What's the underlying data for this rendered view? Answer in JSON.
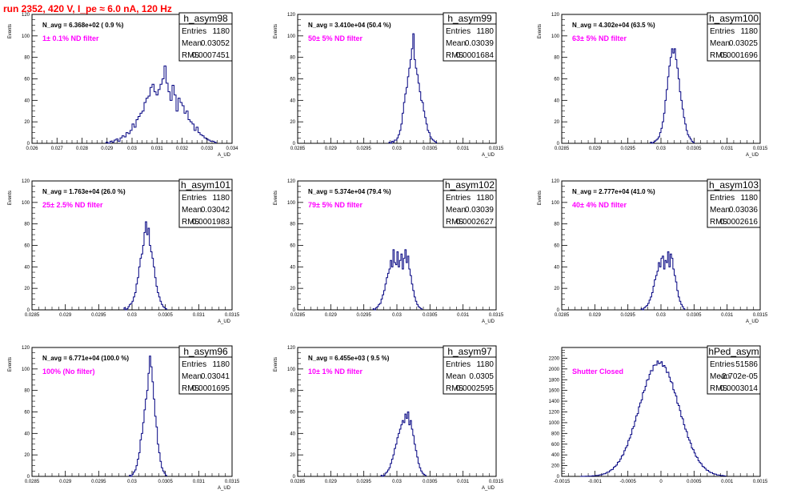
{
  "page": {
    "title": "run 2352,   420 V, I_pe ≈ 6.0 nA, 120 Hz"
  },
  "colors": {
    "histogram": "#000080",
    "annotation": "#ff00ff",
    "title": "#ff0000",
    "frame": "#000000"
  },
  "chart_data": [
    {
      "type": "histogram",
      "name": "h_asym98",
      "ylabel": "Events",
      "xlabel": "A_UD",
      "xlim": [
        0.026,
        0.034
      ],
      "ylim": [
        0,
        120
      ],
      "xticks": [
        0.026,
        0.027,
        0.028,
        0.029,
        0.03,
        0.031,
        0.032,
        0.033,
        0.034
      ],
      "xtick_labels": [
        "0.026",
        "0.027",
        "0.028",
        "0.029",
        "0.03",
        "0.031",
        "0.032",
        "0.033",
        "0.034"
      ],
      "yticks": [
        0,
        20,
        40,
        60,
        80,
        100,
        120
      ],
      "n_avg": "N_avg = 6.368e+02 ( 0.9 %)",
      "filter": "1± 0.1% ND filter",
      "stats": {
        "entries": "1180",
        "mean": "0.03052",
        "rms": "0.0007451"
      },
      "bins": {
        "start": 0.02896,
        "width": 8e-05,
        "values": [
          1,
          0,
          2,
          1,
          3,
          4,
          2,
          5,
          7,
          6,
          10,
          9,
          12,
          18,
          15,
          22,
          25,
          28,
          30,
          38,
          42,
          44,
          52,
          55,
          48,
          45,
          50,
          55,
          60,
          72,
          56,
          48,
          40,
          54,
          45,
          30,
          42,
          38,
          35,
          28,
          30,
          22,
          20,
          18,
          12,
          15,
          10,
          8,
          7,
          5,
          4,
          3,
          2,
          2,
          1
        ]
      }
    },
    {
      "type": "histogram",
      "name": "h_asym99",
      "ylabel": "Events",
      "xlabel": "A_UD",
      "xlim": [
        0.0285,
        0.0315
      ],
      "ylim": [
        0,
        120
      ],
      "xticks": [
        0.0285,
        0.029,
        0.0295,
        0.03,
        0.0305,
        0.031,
        0.0315
      ],
      "xtick_labels": [
        "0.0285",
        "0.029",
        "0.0295",
        "0.03",
        "0.0305",
        "0.031",
        "0.0315"
      ],
      "yticks": [
        0,
        20,
        40,
        60,
        80,
        100,
        120
      ],
      "n_avg": "N_avg = 3.410e+04 (50.4 %)",
      "filter": "50± 5% ND filter",
      "stats": {
        "entries": "1180",
        "mean": "0.03039",
        "rms": "0.0001684"
      },
      "bins": {
        "start": 0.02988,
        "width": 2e-05,
        "values": [
          1,
          0,
          2,
          1,
          3,
          3,
          5,
          8,
          12,
          18,
          28,
          38,
          46,
          52,
          62,
          70,
          78,
          88,
          102,
          78,
          70,
          64,
          56,
          48,
          40,
          38,
          30,
          24,
          18,
          12,
          10,
          6,
          4,
          3,
          2,
          1
        ]
      }
    },
    {
      "type": "histogram",
      "name": "h_asym100",
      "ylabel": "Events",
      "xlabel": "A_UD",
      "xlim": [
        0.0285,
        0.0315
      ],
      "ylim": [
        0,
        120
      ],
      "xticks": [
        0.0285,
        0.029,
        0.0295,
        0.03,
        0.0305,
        0.031,
        0.0315
      ],
      "xtick_labels": [
        "0.0285",
        "0.029",
        "0.0295",
        "0.03",
        "0.0305",
        "0.031",
        "0.0315"
      ],
      "yticks": [
        0,
        20,
        40,
        60,
        80,
        100,
        120
      ],
      "n_avg": "N_avg = 4.302e+04 (63.5 %)",
      "filter": "63± 5% ND filter",
      "stats": {
        "entries": "1180",
        "mean": "0.03025",
        "rms": "0.0001696"
      },
      "bins": {
        "start": 0.02984,
        "width": 2e-05,
        "values": [
          1,
          0,
          1,
          2,
          3,
          4,
          6,
          10,
          14,
          20,
          28,
          40,
          50,
          62,
          72,
          80,
          88,
          84,
          88,
          78,
          70,
          60,
          48,
          40,
          32,
          24,
          18,
          12,
          8,
          6,
          4,
          2,
          1
        ]
      }
    },
    {
      "type": "histogram",
      "name": "h_asym101",
      "ylabel": "Events",
      "xlabel": "A_UD",
      "xlim": [
        0.0285,
        0.0315
      ],
      "ylim": [
        0,
        120
      ],
      "xticks": [
        0.0285,
        0.029,
        0.0295,
        0.03,
        0.0305,
        0.031,
        0.0315
      ],
      "xtick_labels": [
        "0.0285",
        "0.029",
        "0.0295",
        "0.03",
        "0.0305",
        "0.031",
        "0.0315"
      ],
      "yticks": [
        0,
        20,
        40,
        60,
        80,
        100,
        120
      ],
      "n_avg": "N_avg = 1.763e+04 (26.0 %)",
      "filter": "25± 2.5% ND filter",
      "stats": {
        "entries": "1180",
        "mean": "0.03042",
        "rms": "0.0001983"
      },
      "bins": {
        "start": 0.02988,
        "width": 2e-05,
        "values": [
          2,
          0,
          1,
          3,
          5,
          6,
          8,
          12,
          16,
          24,
          30,
          40,
          48,
          52,
          60,
          72,
          82,
          70,
          76,
          60,
          54,
          48,
          40,
          30,
          22,
          16,
          12,
          8,
          5,
          3,
          2,
          1
        ]
      }
    },
    {
      "type": "histogram",
      "name": "h_asym102",
      "ylabel": "Events",
      "xlabel": "A_UD",
      "xlim": [
        0.0285,
        0.0315
      ],
      "ylim": [
        0,
        120
      ],
      "xticks": [
        0.0285,
        0.029,
        0.0295,
        0.03,
        0.0305,
        0.031,
        0.0315
      ],
      "xtick_labels": [
        "0.0285",
        "0.029",
        "0.0295",
        "0.03",
        "0.0305",
        "0.031",
        "0.0315"
      ],
      "yticks": [
        0,
        20,
        40,
        60,
        80,
        100,
        120
      ],
      "n_avg": "N_avg = 5.374e+04 (79.4 %)",
      "filter": "79± 5% ND filter",
      "stats": {
        "entries": "1180",
        "mean": "0.03039",
        "rms": "0.0002627"
      },
      "bins": {
        "start": 0.02964,
        "width": 2e-05,
        "values": [
          1,
          0,
          2,
          3,
          5,
          6,
          10,
          14,
          18,
          24,
          30,
          34,
          38,
          46,
          40,
          56,
          44,
          42,
          54,
          40,
          46,
          52,
          38,
          48,
          56,
          44,
          50,
          38,
          32,
          24,
          18,
          12,
          8,
          5,
          3,
          2,
          1
        ]
      }
    },
    {
      "type": "histogram",
      "name": "h_asym103",
      "ylabel": "Events",
      "xlabel": "A_UD",
      "xlim": [
        0.0285,
        0.0315
      ],
      "ylim": [
        0,
        120
      ],
      "xticks": [
        0.0285,
        0.029,
        0.0295,
        0.03,
        0.0305,
        0.031,
        0.0315
      ],
      "xtick_labels": [
        "0.0285",
        "0.029",
        "0.0295",
        "0.03",
        "0.0305",
        "0.031",
        "0.0315"
      ],
      "yticks": [
        0,
        20,
        40,
        60,
        80,
        100,
        120
      ],
      "n_avg": "N_avg = 2.777e+04 (41.0 %)",
      "filter": "40± 4% ND filter",
      "stats": {
        "entries": "1180",
        "mean": "0.03036",
        "rms": "0.0002616"
      },
      "bins": {
        "start": 0.0297,
        "width": 2e-05,
        "values": [
          1,
          0,
          2,
          3,
          4,
          6,
          9,
          12,
          16,
          22,
          28,
          32,
          36,
          44,
          40,
          48,
          50,
          38,
          46,
          44,
          54,
          40,
          52,
          48,
          38,
          32,
          26,
          18,
          12,
          8,
          5,
          3,
          1
        ]
      }
    },
    {
      "type": "histogram",
      "name": "h_asym96",
      "ylabel": "Events",
      "xlabel": "A_UD",
      "xlim": [
        0.0285,
        0.0315
      ],
      "ylim": [
        0,
        120
      ],
      "xticks": [
        0.0285,
        0.029,
        0.0295,
        0.03,
        0.0305,
        0.031,
        0.0315
      ],
      "xtick_labels": [
        "0.0285",
        "0.029",
        "0.0295",
        "0.03",
        "0.0305",
        "0.031",
        "0.0315"
      ],
      "yticks": [
        0,
        20,
        40,
        60,
        80,
        100,
        120
      ],
      "n_avg": "N_avg = 6.771e+04 (100.0 %)",
      "filter": "100% (No filter)",
      "stats": {
        "entries": "1180",
        "mean": "0.03041",
        "rms": "0.0001695"
      },
      "bins": {
        "start": 0.02996,
        "width": 2e-05,
        "values": [
          1,
          0,
          2,
          4,
          6,
          10,
          16,
          22,
          34,
          40,
          50,
          62,
          72,
          80,
          96,
          112,
          102,
          88,
          72,
          56,
          46,
          30,
          22,
          14,
          8,
          5,
          3,
          1
        ]
      }
    },
    {
      "type": "histogram",
      "name": "h_asym97",
      "ylabel": "Events",
      "xlabel": "A_UD",
      "xlim": [
        0.0285,
        0.0315
      ],
      "ylim": [
        0,
        120
      ],
      "xticks": [
        0.0285,
        0.029,
        0.0295,
        0.03,
        0.0305,
        0.031,
        0.0315
      ],
      "xtick_labels": [
        "0.0285",
        "0.029",
        "0.0295",
        "0.03",
        "0.0305",
        "0.031",
        "0.0315"
      ],
      "yticks": [
        0,
        20,
        40,
        60,
        80,
        100,
        120
      ],
      "n_avg": "N_avg = 6.455e+03 ( 9.5 %)",
      "filter": "10± 1% ND filter",
      "stats": {
        "entries": "1180",
        "mean": "0.0305",
        "rms": "0.0002595"
      },
      "bins": {
        "start": 0.02976,
        "width": 2e-05,
        "values": [
          1,
          0,
          1,
          3,
          4,
          6,
          8,
          12,
          16,
          20,
          26,
          30,
          36,
          40,
          44,
          48,
          52,
          50,
          58,
          54,
          60,
          48,
          52,
          44,
          38,
          30,
          24,
          18,
          12,
          8,
          5,
          3,
          2,
          1
        ]
      }
    },
    {
      "type": "histogram",
      "name": "hPed_asym",
      "ylabel": "",
      "xlabel": "",
      "xlim": [
        -0.0015,
        0.0015
      ],
      "ylim": [
        0,
        2400
      ],
      "xticks": [
        -0.0015,
        -0.001,
        -0.0005,
        0,
        0.0005,
        0.001,
        0.0015
      ],
      "xtick_labels": [
        "-0.0015",
        "-0.001",
        "-0.0005",
        "0",
        "0.0005",
        "0.001",
        "0.0015"
      ],
      "yticks": [
        0,
        200,
        400,
        600,
        800,
        1000,
        1200,
        1400,
        1600,
        1800,
        2000,
        2200
      ],
      "n_avg": "",
      "filter": "Shutter Closed",
      "stats": {
        "entries": "51586",
        "mean": "-2.702e-05",
        "rms": "0.0003014"
      },
      "gauss": {
        "mean": -2.7e-05,
        "sigma": 0.0003014,
        "peak": 2120,
        "start": -0.00122,
        "width": 2e-05,
        "nbins": 110
      }
    }
  ]
}
